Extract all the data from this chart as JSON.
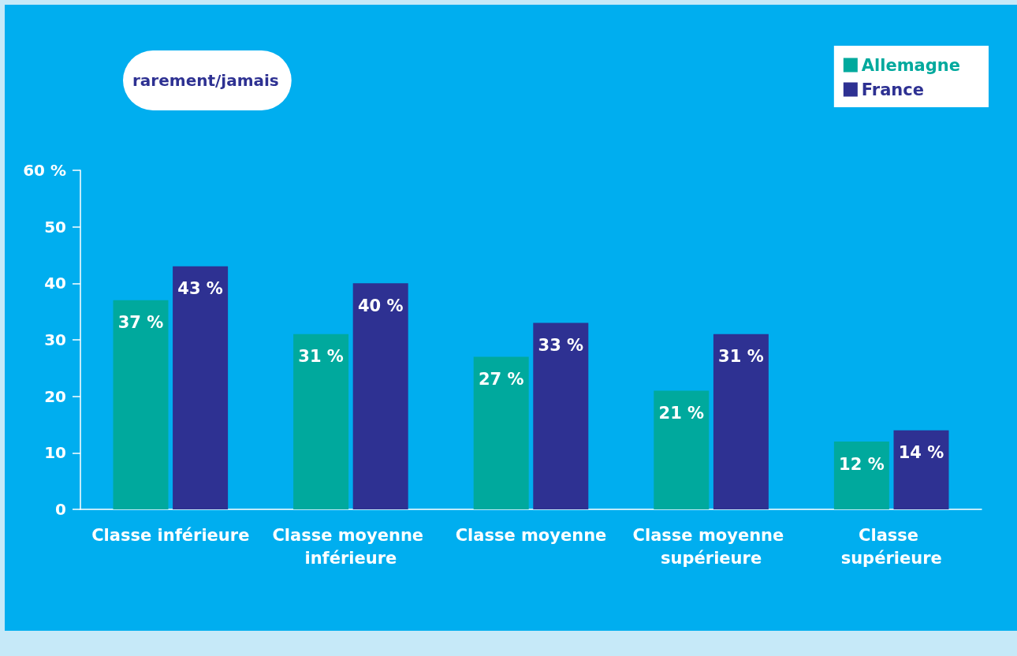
{
  "chart_data": {
    "type": "bar",
    "categories": [
      "Classe inférieure",
      "Classe moyenne inférieure",
      "Classe moyenne",
      "Classe moyenne supérieure",
      "Classe supérieure"
    ],
    "series": [
      {
        "name": "Allemagne",
        "color": "#00a99d",
        "values": [
          37,
          31,
          27,
          21,
          12
        ],
        "value_labels": [
          "37 %",
          "31 %",
          "27 %",
          "21 %",
          "12 %"
        ]
      },
      {
        "name": "France",
        "color": "#2e3192",
        "values": [
          43,
          40,
          33,
          31,
          14
        ],
        "value_labels": [
          "43 %",
          "40 %",
          "33 %",
          "31 %",
          "14 %"
        ]
      }
    ],
    "ylim": [
      0,
      60
    ],
    "yticks": [
      0,
      10,
      20,
      30,
      40,
      50,
      {
        "value": 60,
        "label": "60 %"
      }
    ],
    "annotations": [
      "rarement/jamais"
    ],
    "grid": false,
    "legend": "top right"
  }
}
